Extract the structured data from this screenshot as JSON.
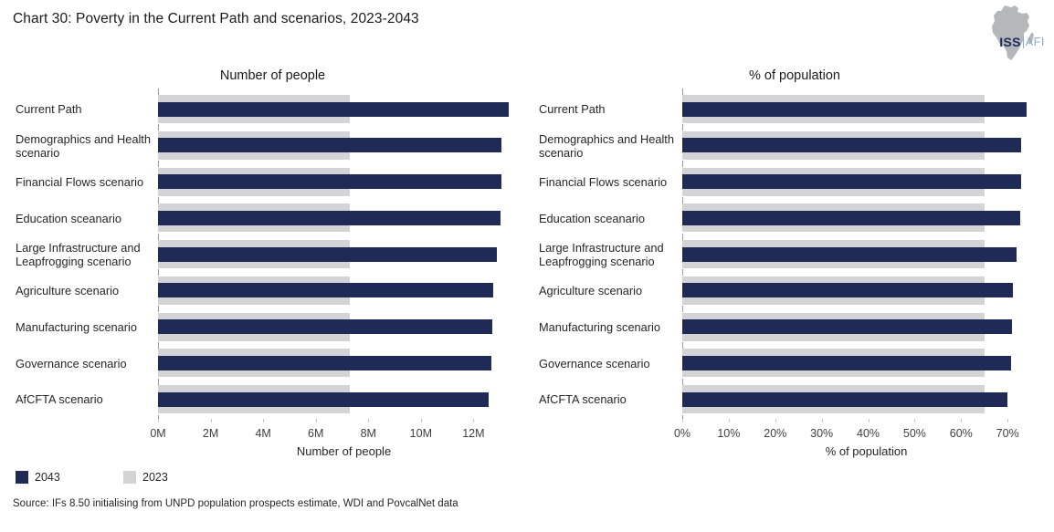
{
  "title": "Chart 30: Poverty in the Current Path and scenarios, 2023-2043",
  "logo": {
    "iss": "ISS",
    "afi": "AFI"
  },
  "legend": [
    {
      "label": "2043",
      "color": "#1f2a56"
    },
    {
      "label": "2023",
      "color": "#d4d4d6"
    }
  ],
  "source": "Source: IFs 8.50 initialising from UNPD population prospects estimate, WDI and PovcalNet data",
  "chart_data": [
    {
      "type": "bar",
      "orientation": "horizontal",
      "title": "Number of people",
      "xlabel": "Number of people",
      "categories": [
        "Current Path",
        "Demographics and Health scenario",
        "Financial Flows scenario",
        "Education sceanario",
        "Large Infrastructure and Leapfrogging scenario",
        "Agriculture scenario",
        "Manufacturing scenario",
        "Governance scenario",
        "AfCFTA scenario"
      ],
      "series": [
        {
          "name": "2043",
          "color": "#1f2a56",
          "values": [
            13.33,
            13.07,
            13.08,
            13.04,
            12.9,
            12.74,
            12.71,
            12.67,
            12.58
          ]
        },
        {
          "name": "2023",
          "color": "#d4d4d6",
          "values": [
            7.3,
            7.3,
            7.3,
            7.3,
            7.3,
            7.3,
            7.3,
            7.3,
            7.3
          ]
        }
      ],
      "xlim": [
        0,
        14.14
      ],
      "xticks": [
        {
          "value": 0,
          "label": "0M"
        },
        {
          "value": 2,
          "label": "2M"
        },
        {
          "value": 4,
          "label": "4M"
        },
        {
          "value": 6,
          "label": "6M"
        },
        {
          "value": 8,
          "label": "8M"
        },
        {
          "value": 10,
          "label": "10M"
        },
        {
          "value": 12,
          "label": "12M"
        }
      ],
      "legend_position": "bottom-left",
      "grid": false
    },
    {
      "type": "bar",
      "orientation": "horizontal",
      "title": "% of population",
      "xlabel": "% of population",
      "categories": [
        "Current Path",
        "Demographics and Health scenario",
        "Financial Flows scenario",
        "Education sceanario",
        "Large Infrastructure and Leapfrogging scenario",
        "Agriculture scenario",
        "Manufacturing scenario",
        "Governance scenario",
        "AfCFTA scenario"
      ],
      "series": [
        {
          "name": "2043",
          "color": "#1f2a56",
          "values": [
            74.1,
            72.9,
            73.0,
            72.7,
            72.0,
            71.1,
            70.9,
            70.7,
            70.0
          ]
        },
        {
          "name": "2023",
          "color": "#d4d4d6",
          "values": [
            65,
            65,
            65,
            65,
            65,
            65,
            65,
            65,
            65
          ]
        }
      ],
      "xlim": [
        0,
        79.2
      ],
      "xticks": [
        {
          "value": 0,
          "label": "0%"
        },
        {
          "value": 10,
          "label": "10%"
        },
        {
          "value": 20,
          "label": "20%"
        },
        {
          "value": 30,
          "label": "30%"
        },
        {
          "value": 40,
          "label": "40%"
        },
        {
          "value": 50,
          "label": "50%"
        },
        {
          "value": 60,
          "label": "60%"
        },
        {
          "value": 70,
          "label": "70%"
        }
      ],
      "legend_position": "bottom-left",
      "grid": false
    }
  ]
}
